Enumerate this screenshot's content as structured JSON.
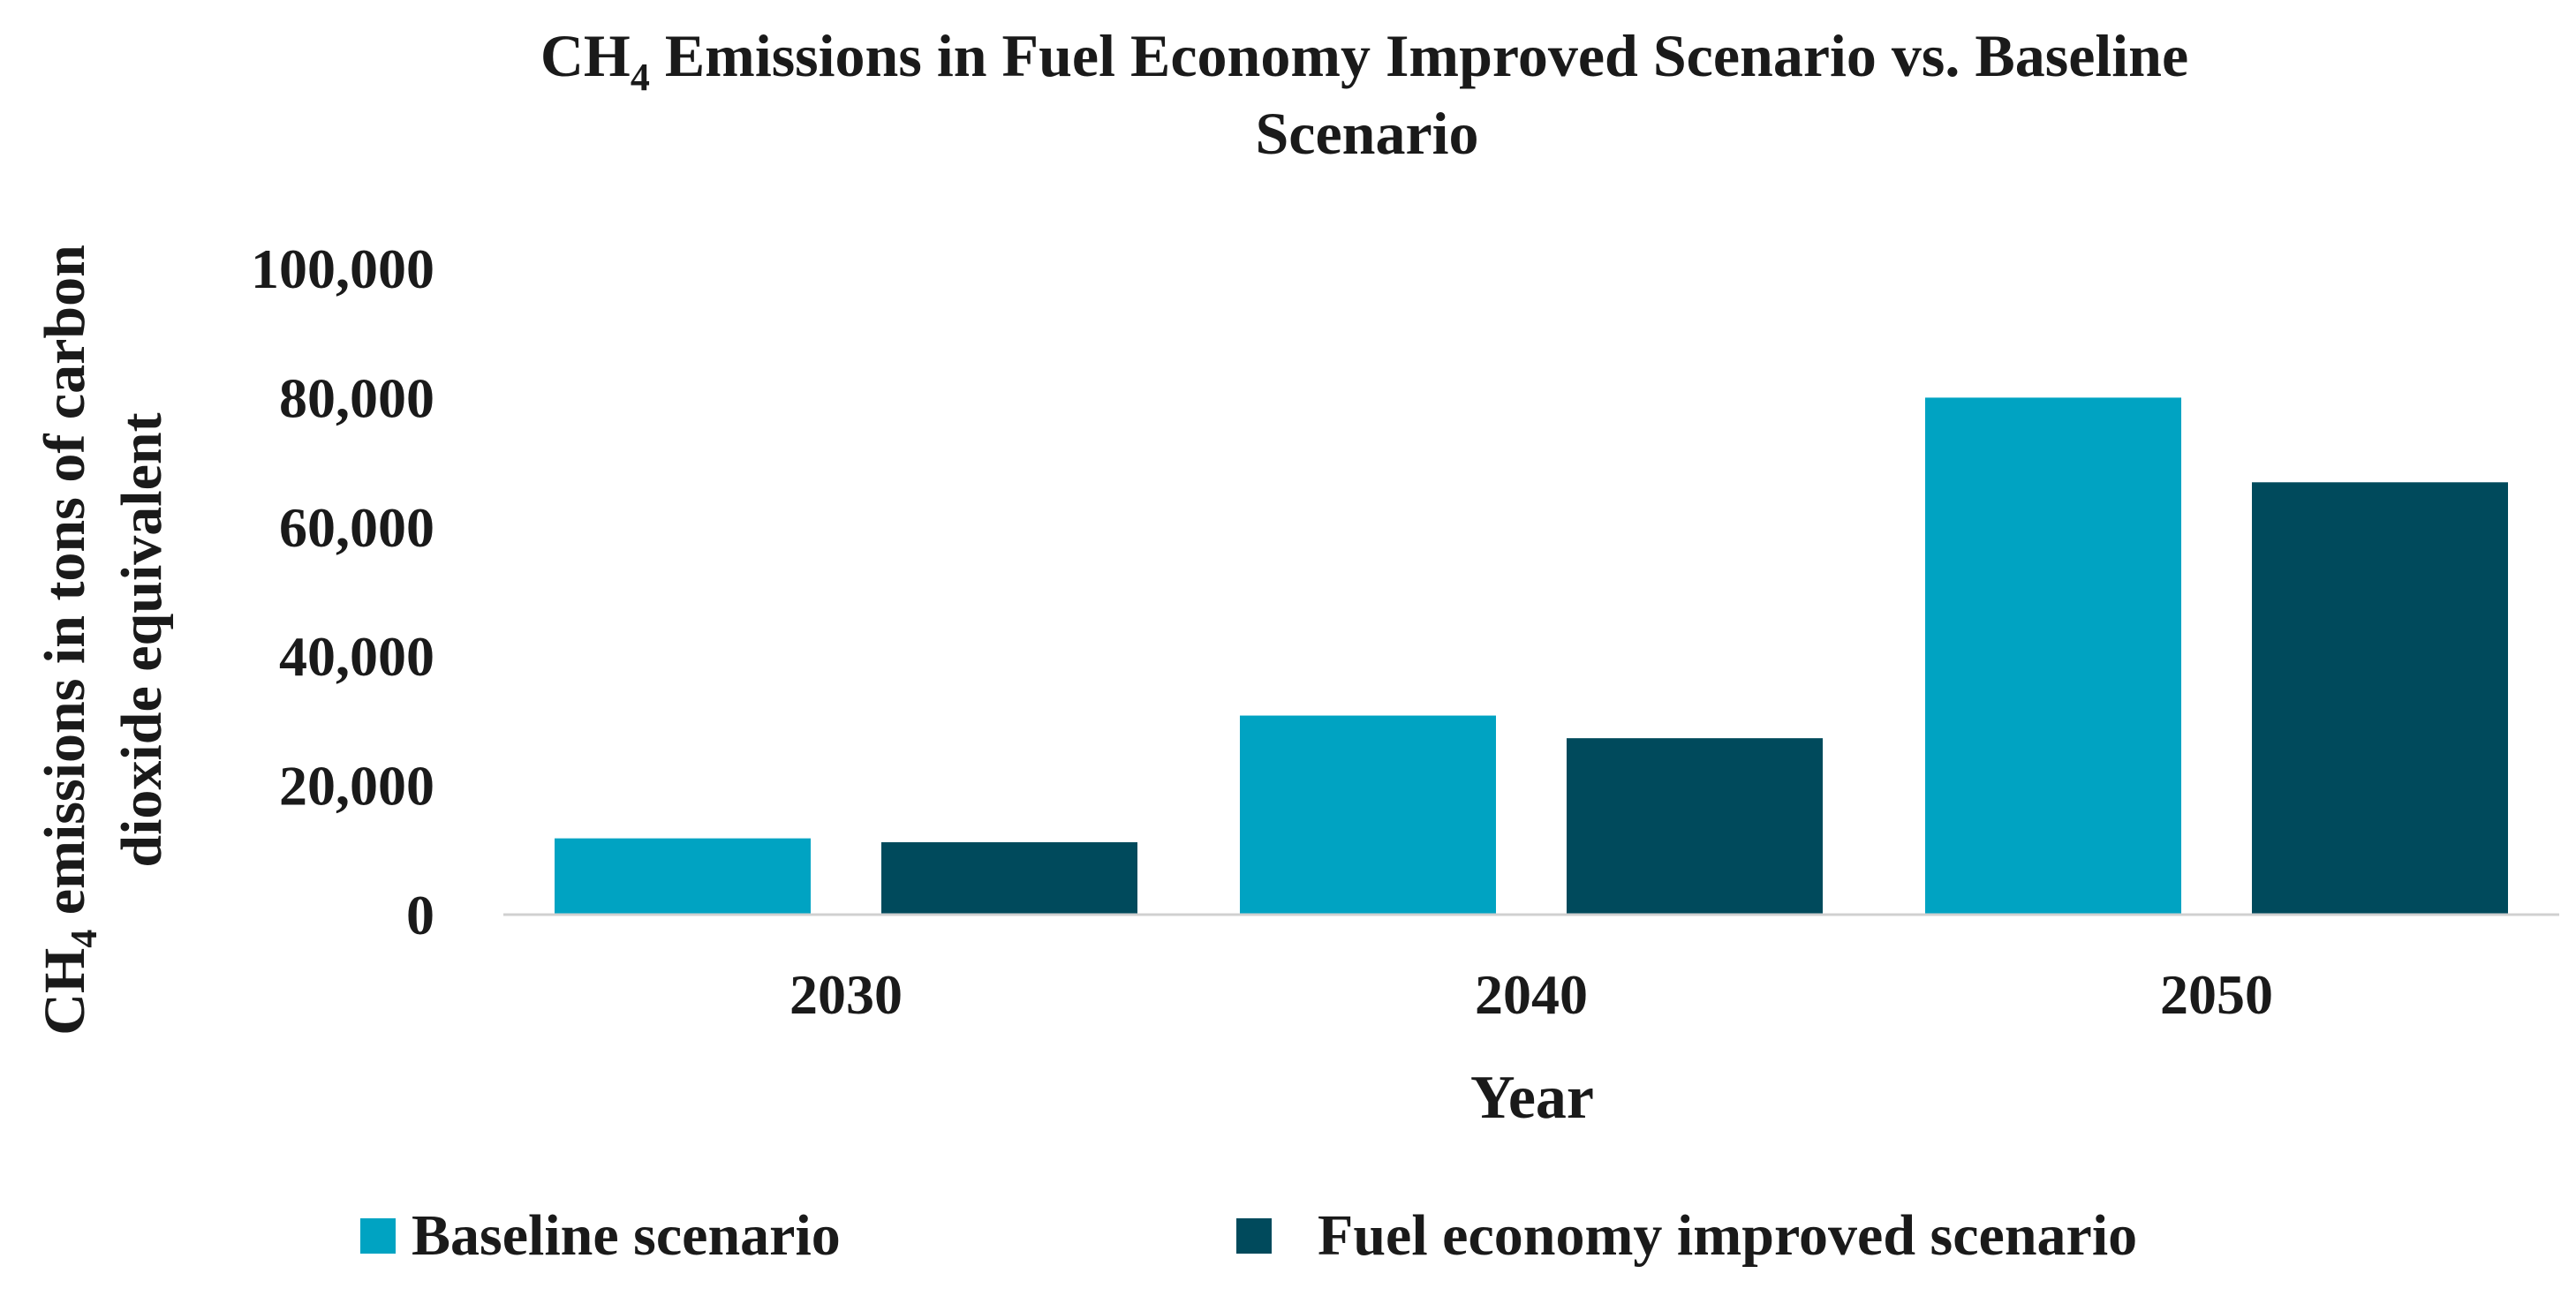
{
  "chart_data": {
    "type": "bar",
    "title": {
      "prefix": "CH",
      "subscript": "4",
      "line1_rest": " Emissions in Fuel Economy Improved Scenario vs. Baseline",
      "line2": "Scenario"
    },
    "ylabel": {
      "prefix": "CH",
      "subscript": "4",
      "line1_rest": " emissions in tons of carbon",
      "line2": "dioxide equivalent"
    },
    "xlabel": "Year",
    "categories": [
      "2030",
      "2040",
      "2050"
    ],
    "ylim": [
      0,
      100000
    ],
    "yticks": [
      0,
      20000,
      40000,
      60000,
      80000,
      100000
    ],
    "ytick_labels": [
      "0",
      "20,000",
      "40,000",
      "60,000",
      "80,000",
      "100,000"
    ],
    "gridlines": false,
    "legend_position": "bottom",
    "series": [
      {
        "name": "Baseline scenario",
        "color": "#00A3C2",
        "values": [
          11800,
          30800,
          80000
        ]
      },
      {
        "name": "Fuel economy improved scenario",
        "color": "#004A5C",
        "values": [
          11200,
          27300,
          66900
        ]
      }
    ]
  }
}
